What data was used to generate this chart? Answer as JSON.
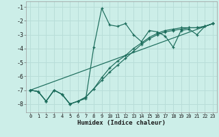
{
  "xlabel": "Humidex (Indice chaleur)",
  "bg_color": "#cceee8",
  "line_color": "#1a6b5a",
  "grid_color": "#b8ddd8",
  "xlim": [
    -0.5,
    23.5
  ],
  "ylim": [
    -8.6,
    -0.6
  ],
  "yticks": [
    -8,
    -7,
    -6,
    -5,
    -4,
    -3,
    -2,
    -1
  ],
  "xticks": [
    0,
    1,
    2,
    3,
    4,
    5,
    6,
    7,
    8,
    9,
    10,
    11,
    12,
    13,
    14,
    15,
    16,
    17,
    18,
    19,
    20,
    21,
    22,
    23
  ],
  "lines": [
    {
      "x": [
        0,
        1,
        2,
        3,
        4,
        5,
        6,
        7,
        8,
        9,
        10,
        11,
        12,
        13,
        14,
        15,
        16,
        17,
        18,
        19,
        20,
        21,
        22,
        23
      ],
      "y": [
        -7.0,
        -7.1,
        -7.8,
        -7.0,
        -7.3,
        -8.0,
        -7.8,
        -7.6,
        -3.9,
        -1.1,
        -2.3,
        -2.4,
        -2.2,
        -3.0,
        -3.5,
        -2.7,
        -2.8,
        -3.1,
        -3.9,
        -2.7,
        -2.6,
        -3.0,
        -2.4,
        -2.2
      ]
    },
    {
      "x": [
        0,
        1,
        2,
        3,
        4,
        5,
        6,
        7,
        8,
        9,
        10,
        11,
        12,
        13,
        14,
        15,
        16,
        17,
        18,
        19,
        20,
        21,
        22,
        23
      ],
      "y": [
        -7.0,
        -7.1,
        -7.8,
        -7.0,
        -7.3,
        -8.0,
        -7.8,
        -7.5,
        -6.9,
        -6.3,
        -5.7,
        -5.2,
        -4.7,
        -4.2,
        -3.7,
        -3.3,
        -3.0,
        -2.8,
        -2.7,
        -2.6,
        -2.5,
        -2.5,
        -2.4,
        -2.2
      ]
    },
    {
      "x": [
        0,
        1,
        2,
        3,
        4,
        5,
        6,
        7,
        8,
        9,
        10,
        11,
        12,
        13,
        14,
        15,
        16,
        17,
        18,
        19,
        20,
        21,
        22,
        23
      ],
      "y": [
        -7.0,
        -7.1,
        -7.8,
        -7.0,
        -7.3,
        -8.0,
        -7.8,
        -7.5,
        -6.9,
        -6.1,
        -5.4,
        -4.9,
        -4.5,
        -4.0,
        -3.6,
        -3.2,
        -2.9,
        -2.7,
        -2.6,
        -2.5,
        -2.5,
        -2.5,
        -2.4,
        -2.2
      ]
    },
    {
      "x": [
        0,
        23
      ],
      "y": [
        -7.0,
        -2.2
      ]
    }
  ]
}
